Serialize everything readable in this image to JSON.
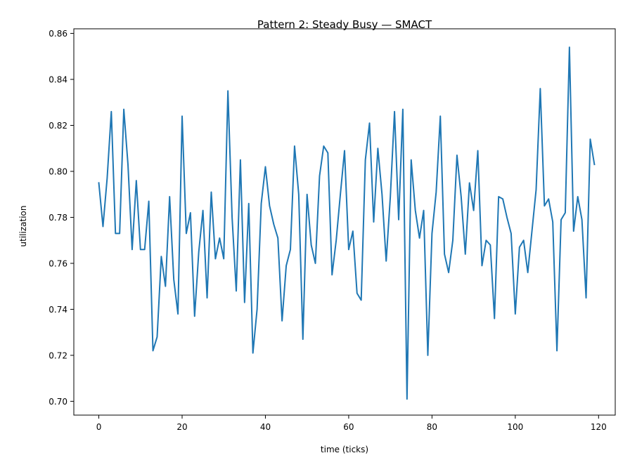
{
  "chart_data": {
    "type": "line",
    "title": "Pattern 2: Steady Busy — SMACT",
    "xlabel": "time (ticks)",
    "ylabel": "utilization",
    "xlim": [
      -6,
      124
    ],
    "ylim": [
      0.694,
      0.862
    ],
    "xticks": [
      0,
      20,
      40,
      60,
      80,
      100,
      120
    ],
    "yticks": [
      0.7,
      0.72,
      0.74,
      0.76,
      0.78,
      0.8,
      0.82,
      0.84,
      0.86
    ],
    "xtick_labels": [
      "0",
      "20",
      "40",
      "60",
      "80",
      "100",
      "120"
    ],
    "ytick_labels": [
      "0.70",
      "0.72",
      "0.74",
      "0.76",
      "0.78",
      "0.80",
      "0.82",
      "0.84",
      "0.86"
    ],
    "grid": false,
    "color": "#1f77b4",
    "series": [
      {
        "x": [
          0,
          1,
          2,
          3,
          4,
          5,
          6,
          7,
          8,
          9,
          10,
          11,
          12,
          13,
          14,
          15,
          16,
          17,
          18,
          19,
          20,
          21,
          22,
          23,
          24,
          25,
          26,
          27,
          28,
          29,
          30,
          31,
          32,
          33,
          34,
          35,
          36,
          37,
          38,
          39,
          40,
          41,
          42,
          43,
          44,
          45,
          46,
          47,
          48,
          49,
          50,
          51,
          52,
          53,
          54,
          55,
          56,
          57,
          58,
          59,
          60,
          61,
          62,
          63,
          64,
          65,
          66,
          67,
          68,
          69,
          70,
          71,
          72,
          73,
          74,
          75,
          76,
          77,
          78,
          79,
          80,
          81,
          82,
          83,
          84,
          85,
          86,
          87,
          88,
          89,
          90,
          91,
          92,
          93,
          94,
          95,
          96,
          97,
          98,
          99,
          100,
          101,
          102,
          103,
          104,
          105,
          106,
          107,
          108,
          109,
          110,
          111,
          112,
          113,
          114,
          115,
          116,
          117,
          118,
          119
        ],
        "values": [
          0.795,
          0.776,
          0.797,
          0.826,
          0.773,
          0.773,
          0.827,
          0.803,
          0.766,
          0.796,
          0.766,
          0.766,
          0.787,
          0.722,
          0.728,
          0.763,
          0.75,
          0.789,
          0.753,
          0.738,
          0.824,
          0.773,
          0.782,
          0.737,
          0.765,
          0.783,
          0.745,
          0.791,
          0.762,
          0.771,
          0.762,
          0.835,
          0.78,
          0.748,
          0.805,
          0.743,
          0.786,
          0.721,
          0.74,
          0.786,
          0.802,
          0.785,
          0.777,
          0.771,
          0.735,
          0.759,
          0.766,
          0.811,
          0.79,
          0.727,
          0.79,
          0.768,
          0.76,
          0.798,
          0.811,
          0.808,
          0.755,
          0.77,
          0.79,
          0.809,
          0.766,
          0.774,
          0.747,
          0.744,
          0.805,
          0.821,
          0.778,
          0.81,
          0.79,
          0.761,
          0.789,
          0.826,
          0.779,
          0.827,
          0.701,
          0.805,
          0.783,
          0.771,
          0.783,
          0.72,
          0.773,
          0.791,
          0.824,
          0.764,
          0.756,
          0.77,
          0.807,
          0.789,
          0.764,
          0.795,
          0.783,
          0.809,
          0.759,
          0.77,
          0.768,
          0.736,
          0.789,
          0.788,
          0.78,
          0.773,
          0.738,
          0.767,
          0.77,
          0.756,
          0.774,
          0.792,
          0.836,
          0.785,
          0.788,
          0.778,
          0.722,
          0.779,
          0.782,
          0.854,
          0.774,
          0.789,
          0.779,
          0.745,
          0.814,
          0.803
        ]
      }
    ]
  }
}
